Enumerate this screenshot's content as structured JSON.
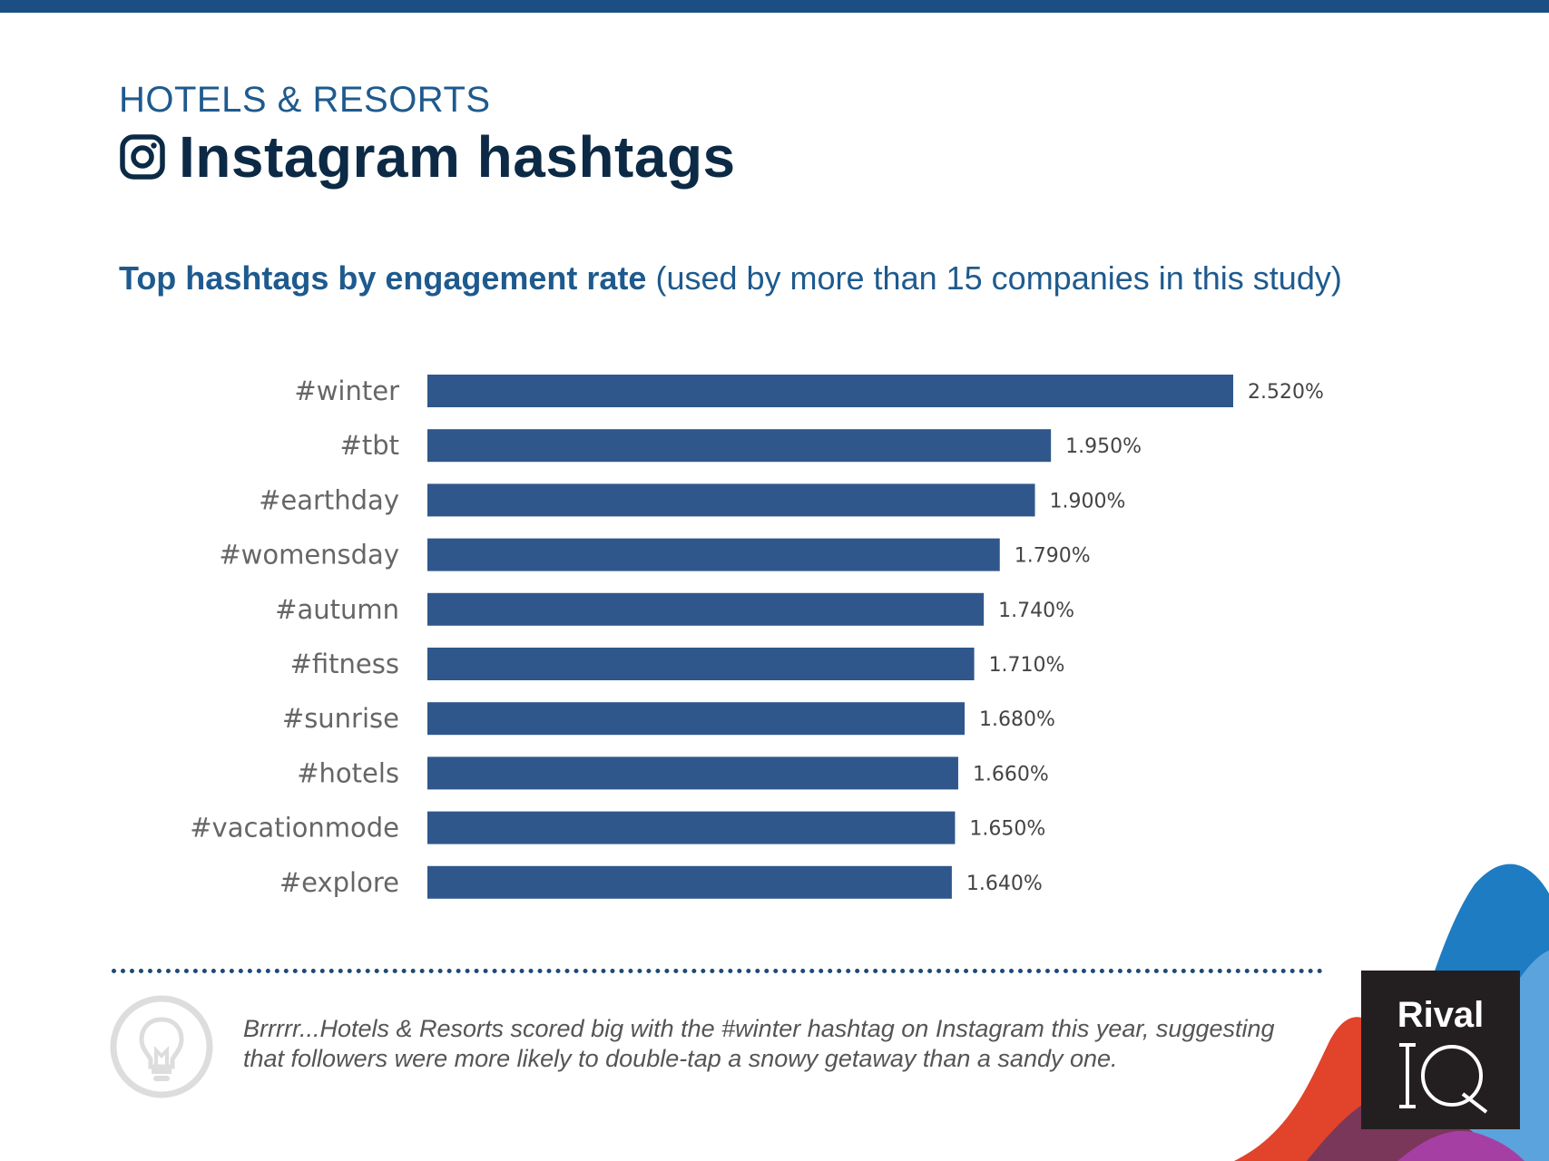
{
  "header": {
    "category": "HOTELS & RESORTS",
    "title": "Instagram hashtags",
    "subtitle_bold": "Top hashtags by engagement rate",
    "subtitle_rest": " (used by more than 15 companies in this study)"
  },
  "chart_data": {
    "type": "bar",
    "orientation": "horizontal",
    "title": "Top hashtags by engagement rate",
    "categories": [
      "#winter",
      "#tbt",
      "#earthday",
      "#womensday",
      "#autumn",
      "#fitness",
      "#sunrise",
      "#hotels",
      "#vacationmode",
      "#explore"
    ],
    "values": [
      2.52,
      1.95,
      1.9,
      1.79,
      1.74,
      1.71,
      1.68,
      1.66,
      1.65,
      1.64
    ],
    "value_labels": [
      "2.520%",
      "1.950%",
      "1.900%",
      "1.790%",
      "1.740%",
      "1.710%",
      "1.680%",
      "1.660%",
      "1.650%",
      "1.640%"
    ],
    "xlim": [
      0,
      2.52
    ],
    "unit": "%",
    "bar_color": "#2f578b"
  },
  "footer": {
    "tip_text": "Brrrrr...Hotels & Resorts scored big with the #winter hashtag on Instagram this year, suggesting that followers were more likely to double-tap a snowy getaway than a sandy one."
  },
  "logo": {
    "line1": "Rival",
    "line2": "IQ"
  },
  "icons": [
    "instagram-icon",
    "lightbulb-icon"
  ],
  "colors": {
    "accent": "#1b4f83",
    "title": "#0c2a45",
    "bar": "#2f578b"
  }
}
